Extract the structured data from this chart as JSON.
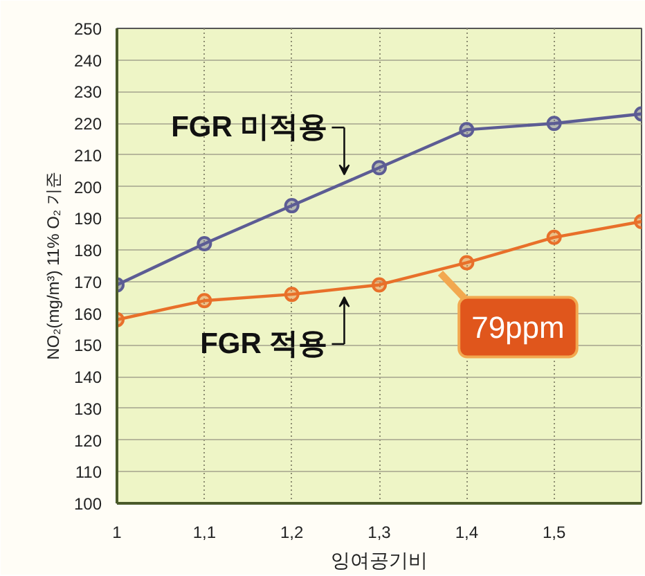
{
  "chart_data": {
    "type": "line",
    "xlabel": "잉여공기비",
    "ylabel": "NO₂(mg/m³) 11% O₂ 기준",
    "x": [
      1,
      1.1,
      1.2,
      1.3,
      1.4,
      1.5,
      1.6
    ],
    "series": [
      {
        "name": "FGR 미적용",
        "color": "#5c5c94",
        "values": [
          169,
          182,
          194,
          206,
          218,
          220,
          223
        ]
      },
      {
        "name": "FGR 적용",
        "color": "#e8702a",
        "values": [
          158,
          164,
          166,
          169,
          176,
          184,
          189
        ]
      }
    ],
    "xlim": [
      1,
      1.6
    ],
    "xticks": [
      1,
      {
        "value": 1.1,
        "label": "1,1"
      },
      {
        "value": 1.2,
        "label": "1,2"
      },
      {
        "value": 1.3,
        "label": "1,3"
      },
      {
        "value": 1.4,
        "label": "1,4"
      },
      {
        "value": 1.5,
        "label": "1,5"
      }
    ],
    "ylim": [
      100,
      250
    ],
    "yticks": [
      100,
      110,
      120,
      130,
      140,
      150,
      160,
      170,
      180,
      190,
      200,
      210,
      220,
      230,
      240,
      250
    ],
    "grid": true,
    "marker": "circle",
    "line_style": "solid",
    "annotations": [
      {
        "text": "79ppm",
        "x": 1.37,
        "y": 174
      }
    ]
  }
}
